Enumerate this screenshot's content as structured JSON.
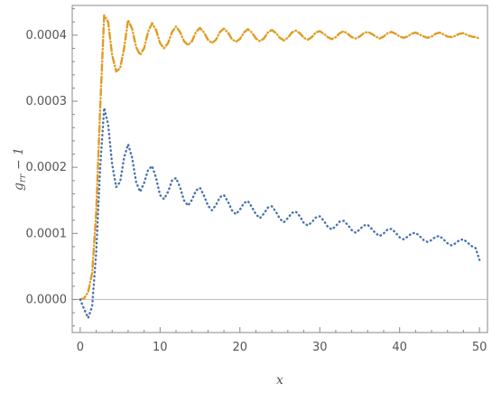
{
  "chart_data": {
    "type": "line",
    "xlabel": "x",
    "ylabel": {
      "base": "g",
      "sub": "rr",
      "rest": " − 1"
    },
    "xlim": [
      -1,
      51
    ],
    "ylim": [
      -5e-05,
      0.000445
    ],
    "xticks": [
      0,
      10,
      20,
      30,
      40,
      50
    ],
    "xtick_labels": [
      "0",
      "10",
      "20",
      "30",
      "40",
      "50"
    ],
    "yticks": [
      0,
      0.0001,
      0.0002,
      0.0003,
      0.0004
    ],
    "ytick_labels": [
      "0.0000",
      "0.0001",
      "0.0002",
      "0.0003",
      "0.0004"
    ],
    "colors": {
      "orange": "#e19c24",
      "blue": "#4a72b0",
      "zero_line": "#bbbbbb",
      "frame": "#888888"
    },
    "series": [
      {
        "style": "dot-dash",
        "color": "#e19c24",
        "points": [
          [
            0,
            0
          ],
          [
            0.5,
            2e-06
          ],
          [
            1.0,
            1.2e-05
          ],
          [
            1.5,
            4e-05
          ],
          [
            2.0,
            0.00013
          ],
          [
            2.5,
            0.00029
          ],
          [
            3.0,
            0.00043
          ],
          [
            3.5,
            0.00042
          ],
          [
            4.0,
            0.00037
          ],
          [
            4.5,
            0.000345
          ],
          [
            5.0,
            0.00035
          ],
          [
            5.5,
            0.00038
          ],
          [
            6.0,
            0.000423
          ],
          [
            6.5,
            0.00041
          ],
          [
            7.0,
            0.000382
          ],
          [
            7.5,
            0.00037
          ],
          [
            8.0,
            0.00038
          ],
          [
            8.5,
            0.000405
          ],
          [
            9.0,
            0.000418
          ],
          [
            9.5,
            0.000408
          ],
          [
            10.0,
            0.000388
          ],
          [
            10.5,
            0.00038
          ],
          [
            11.0,
            0.000388
          ],
          [
            11.5,
            0.000405
          ],
          [
            12.0,
            0.000413
          ],
          [
            12.5,
            0.000405
          ],
          [
            13.0,
            0.000391
          ],
          [
            13.5,
            0.000385
          ],
          [
            14.0,
            0.000391
          ],
          [
            14.5,
            0.000405
          ],
          [
            15.0,
            0.000411
          ],
          [
            15.5,
            0.000404
          ],
          [
            16.0,
            0.000393
          ],
          [
            16.5,
            0.000388
          ],
          [
            17.0,
            0.000393
          ],
          [
            17.5,
            0.000405
          ],
          [
            18.0,
            0.00041
          ],
          [
            18.5,
            0.000404
          ],
          [
            19.0,
            0.000394
          ],
          [
            19.5,
            0.00039
          ],
          [
            20.0,
            0.000394
          ],
          [
            20.5,
            0.000404
          ],
          [
            21.0,
            0.000409
          ],
          [
            21.5,
            0.000404
          ],
          [
            22.0,
            0.000395
          ],
          [
            22.5,
            0.000391
          ],
          [
            23.0,
            0.000395
          ],
          [
            23.5,
            0.000404
          ],
          [
            24.0,
            0.000408
          ],
          [
            24.5,
            0.000403
          ],
          [
            25.0,
            0.000396
          ],
          [
            25.5,
            0.000392
          ],
          [
            26.0,
            0.000396
          ],
          [
            26.5,
            0.000404
          ],
          [
            27.0,
            0.000407
          ],
          [
            27.5,
            0.000403
          ],
          [
            28.0,
            0.000396
          ],
          [
            28.5,
            0.000393
          ],
          [
            29.0,
            0.000397
          ],
          [
            29.5,
            0.000404
          ],
          [
            30.0,
            0.000406
          ],
          [
            30.5,
            0.000402
          ],
          [
            31.0,
            0.000397
          ],
          [
            31.5,
            0.000394
          ],
          [
            32.0,
            0.000397
          ],
          [
            32.5,
            0.000403
          ],
          [
            33.0,
            0.000406
          ],
          [
            33.5,
            0.000402
          ],
          [
            34.0,
            0.000397
          ],
          [
            34.5,
            0.000395
          ],
          [
            35.0,
            0.000398
          ],
          [
            35.5,
            0.000403
          ],
          [
            36.0,
            0.000405
          ],
          [
            36.5,
            0.000402
          ],
          [
            37.0,
            0.000398
          ],
          [
            37.5,
            0.000395
          ],
          [
            38.0,
            0.000398
          ],
          [
            38.5,
            0.000403
          ],
          [
            39.0,
            0.000405
          ],
          [
            39.5,
            0.000402
          ],
          [
            40.0,
            0.000398
          ],
          [
            40.5,
            0.000396
          ],
          [
            41.0,
            0.000398
          ],
          [
            41.5,
            0.000402
          ],
          [
            42.0,
            0.000404
          ],
          [
            42.5,
            0.000401
          ],
          [
            43.0,
            0.000398
          ],
          [
            43.5,
            0.000396
          ],
          [
            44.0,
            0.000398
          ],
          [
            44.5,
            0.000402
          ],
          [
            45.0,
            0.000404
          ],
          [
            45.5,
            0.000401
          ],
          [
            46.0,
            0.000398
          ],
          [
            46.5,
            0.000397
          ],
          [
            47.0,
            0.000399
          ],
          [
            47.5,
            0.000402
          ],
          [
            48.0,
            0.000403
          ],
          [
            48.5,
            0.0004
          ],
          [
            49.0,
            0.000398
          ],
          [
            49.5,
            0.000397
          ],
          [
            50.0,
            0.000395
          ]
        ]
      },
      {
        "style": "dotted",
        "color": "#4a72b0",
        "points": [
          [
            0,
            0
          ],
          [
            0.5,
            -1.5e-05
          ],
          [
            1.0,
            -2.8e-05
          ],
          [
            1.5,
            -1e-05
          ],
          [
            2.0,
            7e-05
          ],
          [
            2.5,
            0.0002
          ],
          [
            3.0,
            0.00029
          ],
          [
            3.5,
            0.000265
          ],
          [
            4.0,
            0.000205
          ],
          [
            4.5,
            0.00017
          ],
          [
            5.0,
            0.000178
          ],
          [
            5.5,
            0.000215
          ],
          [
            6.0,
            0.000235
          ],
          [
            6.5,
            0.000215
          ],
          [
            7.0,
            0.000178
          ],
          [
            7.5,
            0.000163
          ],
          [
            8.0,
            0.000176
          ],
          [
            8.5,
            0.000196
          ],
          [
            9.0,
            0.000202
          ],
          [
            9.5,
            0.000184
          ],
          [
            10.0,
            0.000158
          ],
          [
            10.5,
            0.000152
          ],
          [
            11.0,
            0.000163
          ],
          [
            11.5,
            0.00018
          ],
          [
            12.0,
            0.000184
          ],
          [
            12.5,
            0.00017
          ],
          [
            13.0,
            0.00015
          ],
          [
            13.5,
            0.000142
          ],
          [
            14.0,
            0.000151
          ],
          [
            14.5,
            0.000165
          ],
          [
            15.0,
            0.000169
          ],
          [
            15.5,
            0.000157
          ],
          [
            16.0,
            0.000142
          ],
          [
            16.5,
            0.000135
          ],
          [
            17.0,
            0.000143
          ],
          [
            17.5,
            0.000155
          ],
          [
            18.0,
            0.000158
          ],
          [
            18.5,
            0.000148
          ],
          [
            19.0,
            0.000135
          ],
          [
            19.5,
            0.000129
          ],
          [
            20.0,
            0.000136
          ],
          [
            20.5,
            0.000146
          ],
          [
            21.0,
            0.000149
          ],
          [
            21.5,
            0.00014
          ],
          [
            22.0,
            0.000129
          ],
          [
            22.5,
            0.000123
          ],
          [
            23.0,
            0.00013
          ],
          [
            23.5,
            0.000139
          ],
          [
            24.0,
            0.000141
          ],
          [
            24.5,
            0.000133
          ],
          [
            25.0,
            0.000122
          ],
          [
            25.5,
            0.000117
          ],
          [
            26.0,
            0.000123
          ],
          [
            26.5,
            0.000131
          ],
          [
            27.0,
            0.000133
          ],
          [
            27.5,
            0.000126
          ],
          [
            28.0,
            0.000116
          ],
          [
            28.5,
            0.000112
          ],
          [
            29.0,
            0.000117
          ],
          [
            29.5,
            0.000124
          ],
          [
            30.0,
            0.000126
          ],
          [
            30.5,
            0.000119
          ],
          [
            31.0,
            0.00011
          ],
          [
            31.5,
            0.000106
          ],
          [
            32.0,
            0.000111
          ],
          [
            32.5,
            0.000118
          ],
          [
            33.0,
            0.000119
          ],
          [
            33.5,
            0.000113
          ],
          [
            34.0,
            0.000105
          ],
          [
            34.5,
            0.000101
          ],
          [
            35.0,
            0.000106
          ],
          [
            35.5,
            0.000112
          ],
          [
            36.0,
            0.000113
          ],
          [
            36.5,
            0.000107
          ],
          [
            37.0,
            0.0001
          ],
          [
            37.5,
            9.6e-05
          ],
          [
            38.0,
            0.0001
          ],
          [
            38.5,
            0.000106
          ],
          [
            39.0,
            0.000107
          ],
          [
            39.5,
            0.000101
          ],
          [
            40.0,
            9.4e-05
          ],
          [
            40.5,
            9.1e-05
          ],
          [
            41.0,
            9.5e-05
          ],
          [
            41.5,
            0.0001
          ],
          [
            42.0,
            0.000101
          ],
          [
            42.5,
            9.6e-05
          ],
          [
            43.0,
            9e-05
          ],
          [
            43.5,
            8.7e-05
          ],
          [
            44.0,
            9e-05
          ],
          [
            44.5,
            9.5e-05
          ],
          [
            45.0,
            9.6e-05
          ],
          [
            45.5,
            9.1e-05
          ],
          [
            46.0,
            8.5e-05
          ],
          [
            46.5,
            8.2e-05
          ],
          [
            47.0,
            8.5e-05
          ],
          [
            47.5,
            9e-05
          ],
          [
            48.0,
            9.1e-05
          ],
          [
            48.5,
            8.6e-05
          ],
          [
            49.0,
            8.1e-05
          ],
          [
            49.5,
            7.8e-05
          ],
          [
            50.0,
            6e-05
          ]
        ]
      }
    ]
  }
}
